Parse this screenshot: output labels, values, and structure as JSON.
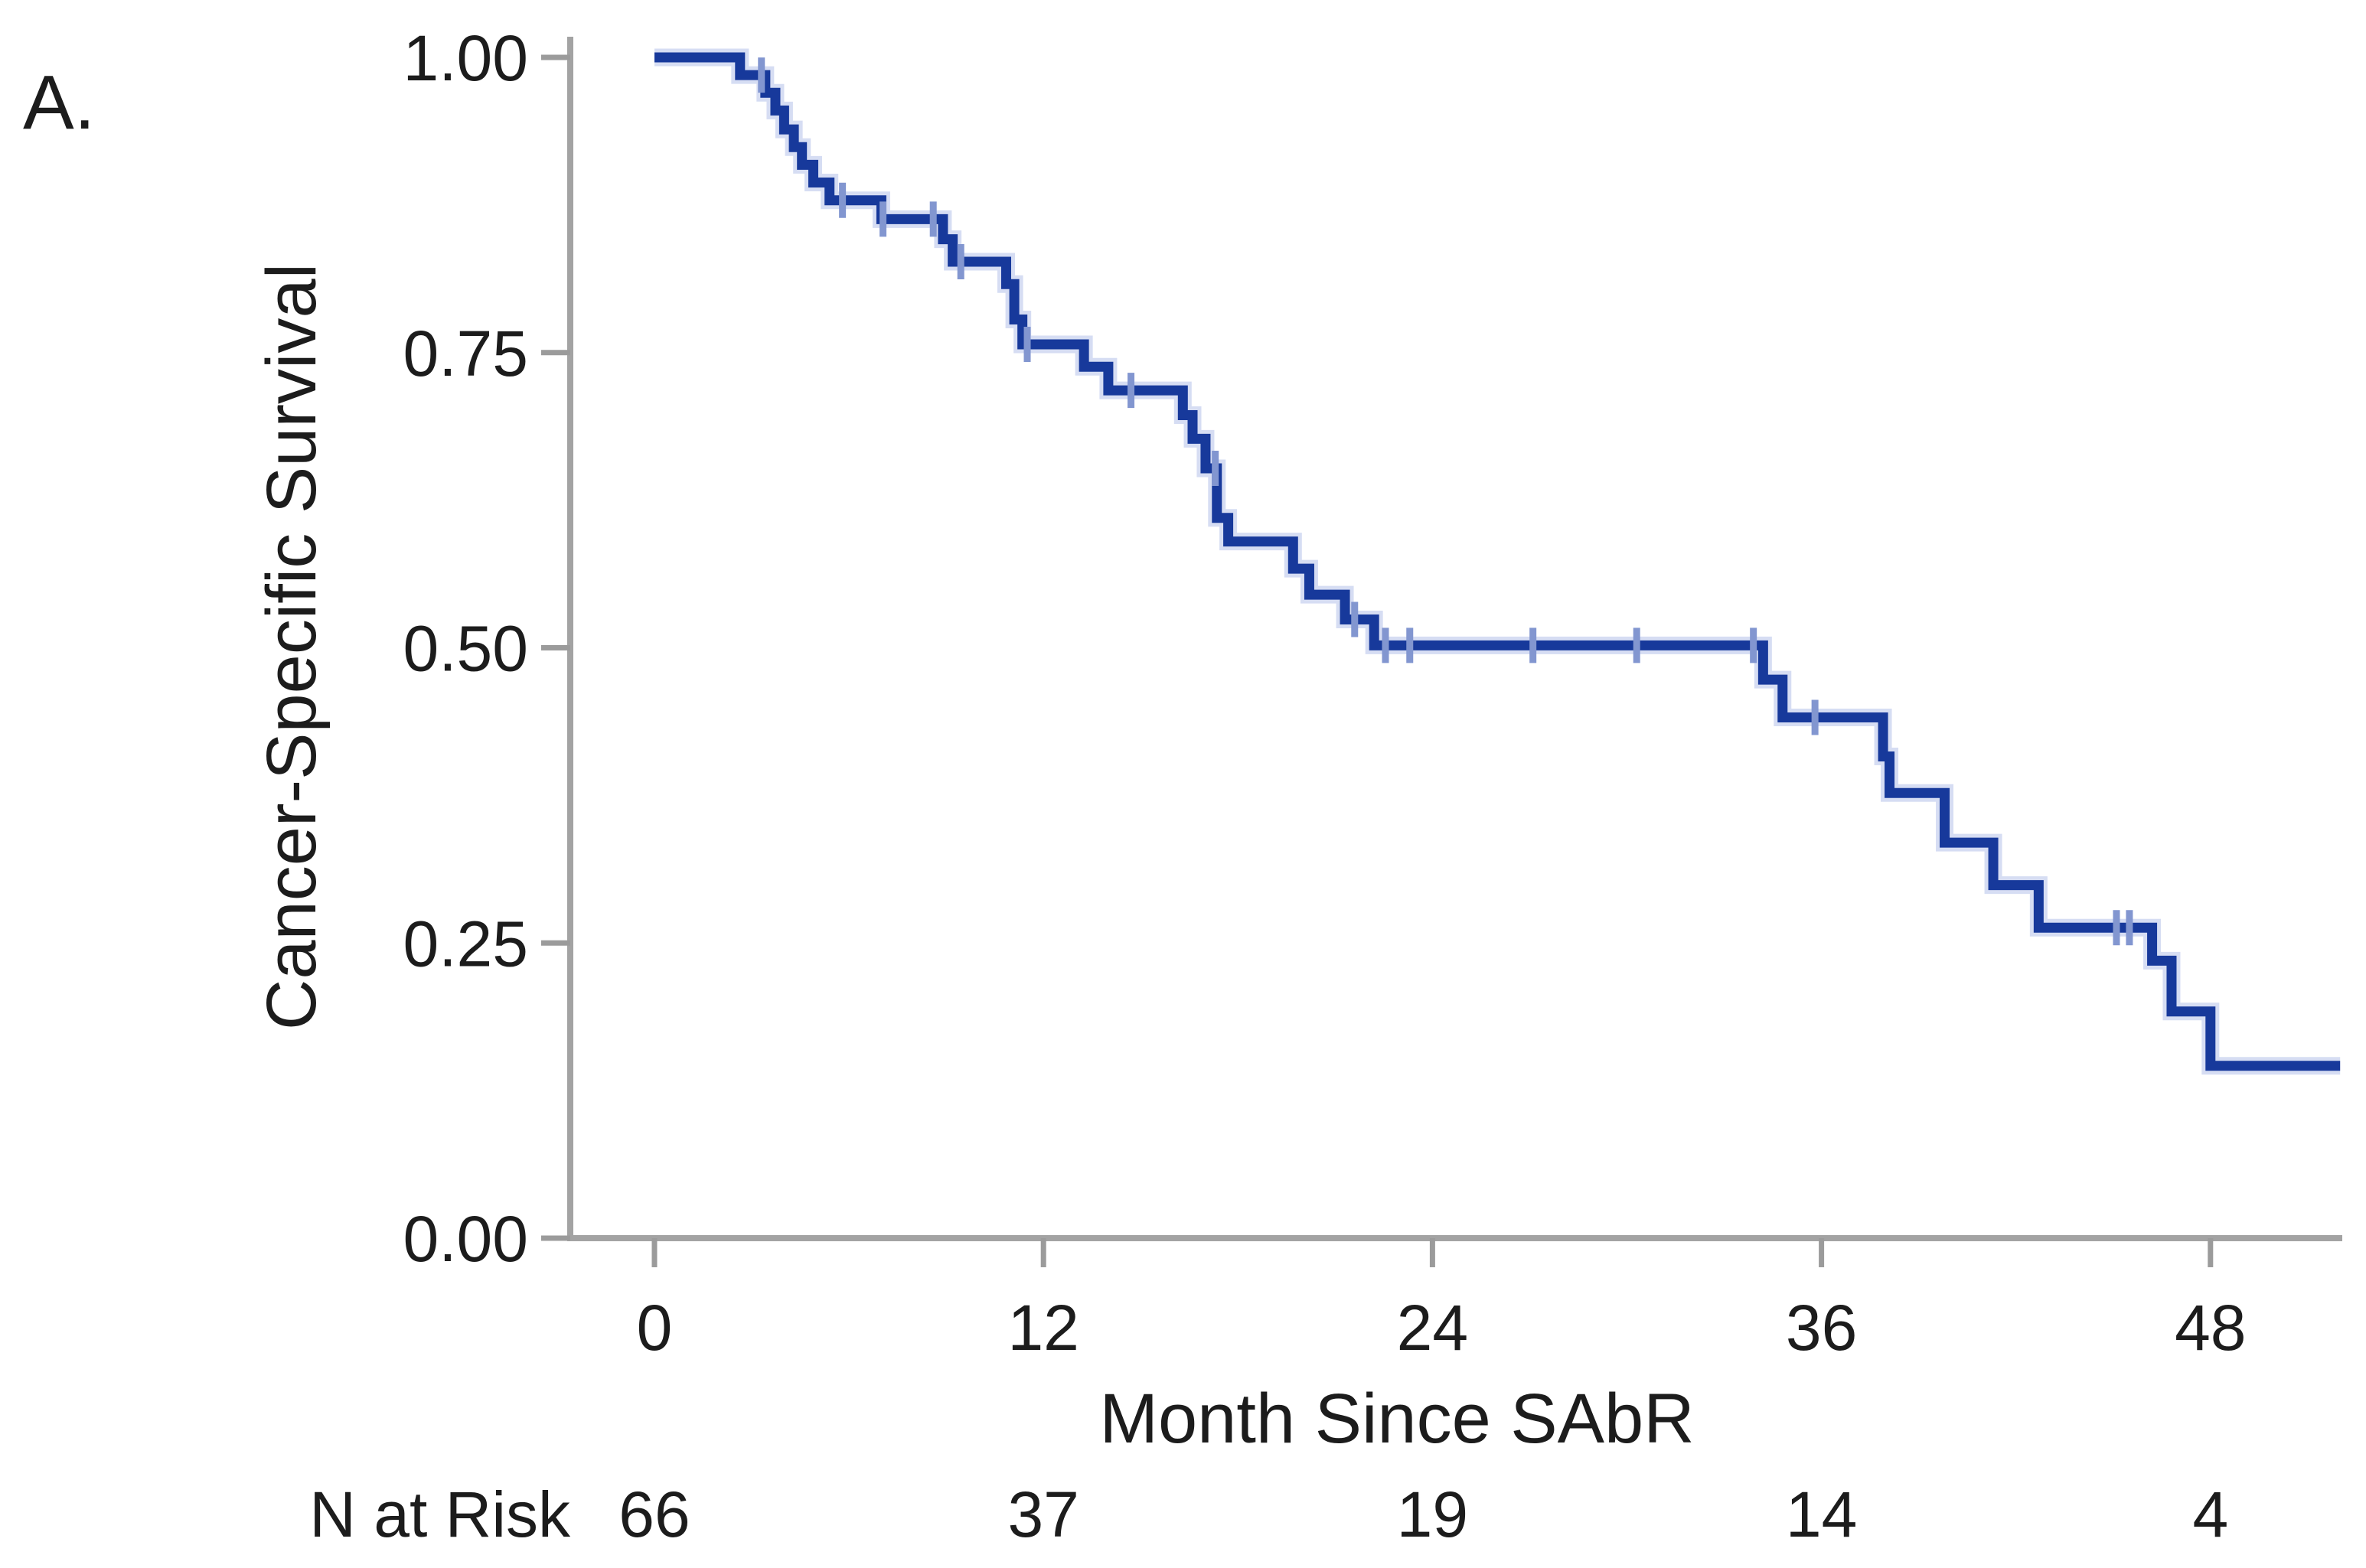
{
  "panel_label": "A.",
  "chart_data": {
    "type": "line",
    "subtype": "kaplan-meier-step",
    "title": "",
    "xlabel": "Month Since SAbR",
    "ylabel": "Cancer-Specific Survival",
    "xlim": [
      0,
      52
    ],
    "ylim": [
      0,
      1
    ],
    "grid": "off",
    "legend": "none",
    "x_ticks": [
      {
        "value": 0,
        "label": "0"
      },
      {
        "value": 12,
        "label": "12"
      },
      {
        "value": 24,
        "label": "24"
      },
      {
        "value": 36,
        "label": "36"
      },
      {
        "value": 48,
        "label": "48"
      }
    ],
    "y_ticks": [
      {
        "value": 0.0,
        "label": "0.00"
      },
      {
        "value": 0.25,
        "label": "0.25"
      },
      {
        "value": 0.5,
        "label": "0.50"
      },
      {
        "value": 0.75,
        "label": "0.75"
      },
      {
        "value": 1.0,
        "label": "1.00"
      }
    ],
    "colors": {
      "line": "#17399b",
      "line_halo": "#b4c1ea",
      "censor": "#8296d0",
      "axis": "#a3a3a3",
      "text": "#1c1c1c"
    },
    "series": [
      {
        "name": "Cancer-Specific Survival",
        "steps": [
          [
            0,
            1.0
          ],
          [
            2.64,
            0.985
          ],
          [
            3.42,
            0.97
          ],
          [
            3.73,
            0.955
          ],
          [
            4.0,
            0.939
          ],
          [
            4.3,
            0.924
          ],
          [
            4.55,
            0.909
          ],
          [
            4.9,
            0.894
          ],
          [
            5.4,
            0.879
          ],
          [
            7.0,
            0.863
          ],
          [
            8.9,
            0.846
          ],
          [
            9.2,
            0.827
          ],
          [
            10.85,
            0.808
          ],
          [
            11.1,
            0.778
          ],
          [
            11.35,
            0.757
          ],
          [
            13.25,
            0.738
          ],
          [
            14.0,
            0.718
          ],
          [
            16.3,
            0.697
          ],
          [
            16.6,
            0.677
          ],
          [
            17.0,
            0.652
          ],
          [
            17.35,
            0.61
          ],
          [
            17.7,
            0.59
          ],
          [
            19.7,
            0.567
          ],
          [
            20.2,
            0.545
          ],
          [
            21.3,
            0.524
          ],
          [
            22.2,
            0.502
          ],
          [
            34.2,
            0.473
          ],
          [
            34.8,
            0.441
          ],
          [
            37.9,
            0.408
          ],
          [
            38.1,
            0.377
          ],
          [
            39.8,
            0.335
          ],
          [
            41.3,
            0.299
          ],
          [
            42.7,
            0.263
          ],
          [
            46.2,
            0.235
          ],
          [
            46.8,
            0.192
          ],
          [
            48.0,
            0.146
          ]
        ],
        "end_time": 52.0,
        "censors": [
          [
            3.3,
            0.985
          ],
          [
            5.8,
            0.879
          ],
          [
            7.05,
            0.863
          ],
          [
            8.6,
            0.863
          ],
          [
            9.45,
            0.827
          ],
          [
            11.5,
            0.757
          ],
          [
            14.7,
            0.718
          ],
          [
            17.3,
            0.652
          ],
          [
            21.6,
            0.524
          ],
          [
            22.55,
            0.502
          ],
          [
            23.3,
            0.502
          ],
          [
            27.1,
            0.502
          ],
          [
            30.3,
            0.502
          ],
          [
            33.9,
            0.502
          ],
          [
            35.8,
            0.441
          ],
          [
            45.1,
            0.263
          ],
          [
            45.5,
            0.263
          ]
        ]
      }
    ],
    "n_at_risk": {
      "label": "N at Risk",
      "times": [
        0,
        12,
        24,
        36,
        48
      ],
      "counts": [
        "66",
        "37",
        "19",
        "14",
        "4"
      ]
    }
  }
}
